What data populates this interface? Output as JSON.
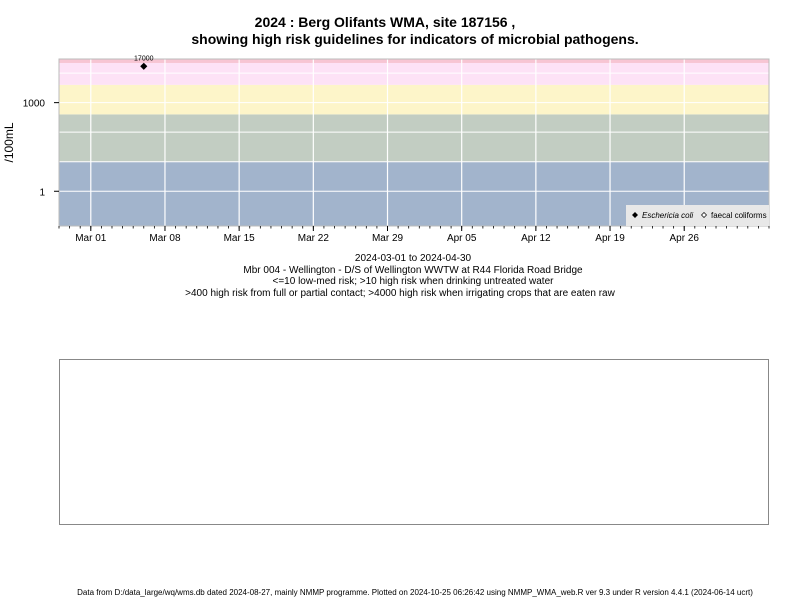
{
  "title": {
    "line1": "2024 : Berg Olifants WMA, site 187156 ,",
    "line2": "showing high risk guidelines for indicators of microbial pathogens."
  },
  "captions": {
    "date_range": "2024-03-01 to 2024-04-30",
    "station": "Mbr 004 - Wellington - D/S of Wellington WWTW at R44 Florida Road Bridge",
    "risk_line1": "<=10 low-med risk; >10 high risk when drinking untreated water",
    "risk_line2": ">400 high risk from full or partial contact; >4000 high risk when irrigating crops that are eaten raw"
  },
  "footer": "Data from D:/data_large/wq/wms.db dated 2024-08-27, mainly NMMP programme. Plotted on 2024-10-25 06:26:42 using NMMP_WMA_web.R ver 9.3 under R version 4.4.1 (2024-06-14 ucrt)",
  "colors": {
    "band_low": "#a2b4cc",
    "band_drink": "#c2cdc2",
    "band_contact": "#fdf5c9",
    "band_irrigate": "#fde2f6",
    "band_top": "#f7c5d3",
    "gridline": "#ffffff",
    "legend_bg": "#e8e8e8"
  },
  "chart_data": {
    "type": "scatter",
    "title": "2024 : Berg Olifants WMA, site 187156 ,",
    "ylabel": "/100mL",
    "xlabel": "2024-03-01 to 2024-04-30",
    "x_scale": "date",
    "y_scale": "log10",
    "xlim": [
      "2024-02-27",
      "2024-05-04"
    ],
    "ylim": [
      0.0667,
      30000
    ],
    "x_ticks": [
      "Mar 01",
      "Mar 08",
      "Mar 15",
      "Mar 22",
      "Mar 29",
      "Apr 05",
      "Apr 12",
      "Apr 19",
      "Apr 26"
    ],
    "x_tick_dates": [
      "2024-03-01",
      "2024-03-08",
      "2024-03-15",
      "2024-03-22",
      "2024-03-29",
      "2024-04-05",
      "2024-04-12",
      "2024-04-19",
      "2024-04-26"
    ],
    "y_ticks": [
      1,
      1000
    ],
    "y_tick_labels": [
      "1",
      "1000"
    ],
    "risk_bands": [
      {
        "from": 0.0667,
        "to": 10,
        "label": "<=10 low-med risk"
      },
      {
        "from": 10,
        "to": 400,
        "label": ">10 high risk when drinking untreated water"
      },
      {
        "from": 400,
        "to": 4000,
        "label": ">400 high risk from full or partial contact"
      },
      {
        "from": 4000,
        "to": 22000,
        "label": ">4000 high risk when irrigating crops that are eaten raw"
      },
      {
        "from": 22000,
        "to": 30000,
        "label": ""
      }
    ],
    "series": [
      {
        "name": "Eschericia coli",
        "marker": "filled-diamond",
        "points": [
          {
            "x": "2024-03-06",
            "y": 17000,
            "label": "17000"
          }
        ]
      },
      {
        "name": "faecal coliforms",
        "marker": "open-diamond",
        "points": []
      }
    ],
    "legend": "bottom-right",
    "grid": true
  }
}
